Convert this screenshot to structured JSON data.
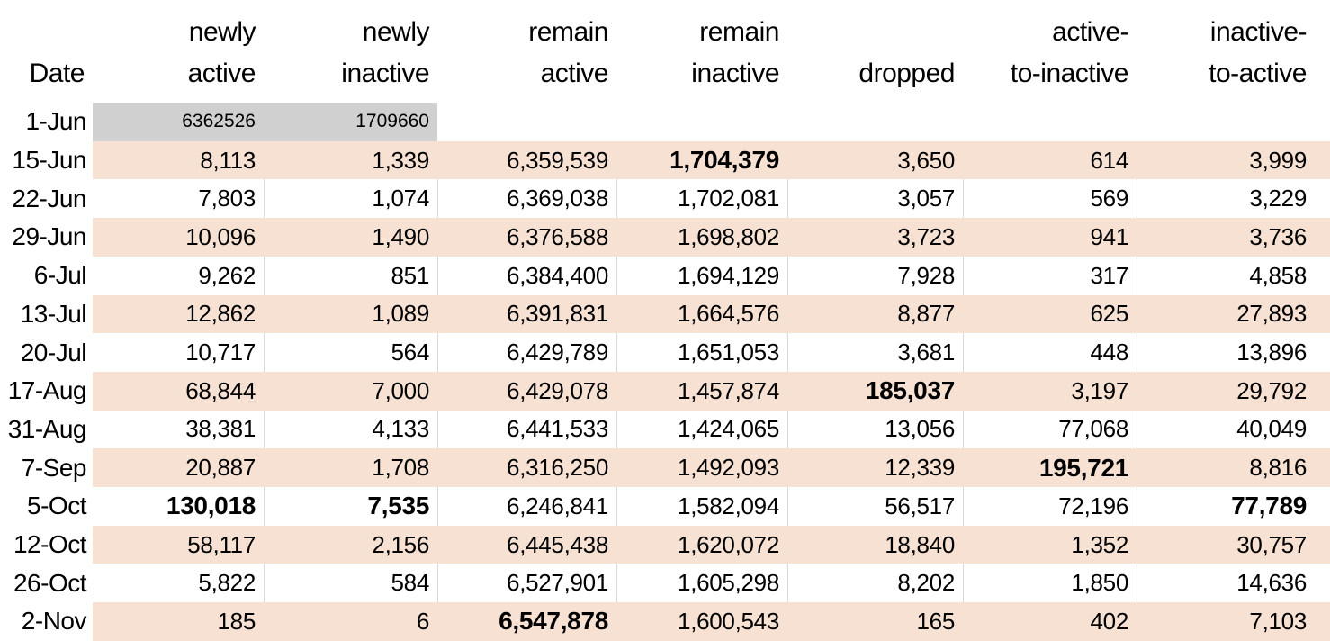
{
  "colors": {
    "background": "#ffffff",
    "text": "#000000",
    "band_peach": "#f6e1d3",
    "fill_gray": "#d0d0d0",
    "grid_line": "#d9d9d9"
  },
  "table": {
    "columns": [
      {
        "id": "date",
        "line1": "",
        "line2": "Date"
      },
      {
        "id": "newly-active",
        "line1": "newly",
        "line2": "active"
      },
      {
        "id": "newly-inactive",
        "line1": "newly",
        "line2": "inactive"
      },
      {
        "id": "remain-active",
        "line1": "remain",
        "line2": "active"
      },
      {
        "id": "remain-inactive",
        "line1": "remain",
        "line2": "inactive"
      },
      {
        "id": "dropped",
        "line1": "",
        "line2": "dropped"
      },
      {
        "id": "active-to-inactive",
        "line1": "active-",
        "line2": "to-inactive"
      },
      {
        "id": "inactive-to-active",
        "line1": "inactive-",
        "line2": "to-active"
      }
    ],
    "rows": [
      {
        "date": "1-Jun",
        "band": "white",
        "values": [
          "6362526",
          "1709660",
          "",
          "",
          "",
          "",
          ""
        ],
        "gray": [
          0,
          1
        ],
        "small": [
          0,
          1
        ],
        "bold": []
      },
      {
        "date": "15-Jun",
        "band": "peach",
        "values": [
          "8,113",
          "1,339",
          "6,359,539",
          "1,704,379",
          "3,650",
          "614",
          "3,999"
        ],
        "bold": [
          3
        ]
      },
      {
        "date": "22-Jun",
        "band": "white",
        "values": [
          "7,803",
          "1,074",
          "6,369,038",
          "1,702,081",
          "3,057",
          "569",
          "3,229"
        ],
        "bold": []
      },
      {
        "date": "29-Jun",
        "band": "peach",
        "values": [
          "10,096",
          "1,490",
          "6,376,588",
          "1,698,802",
          "3,723",
          "941",
          "3,736"
        ],
        "bold": []
      },
      {
        "date": "6-Jul",
        "band": "white",
        "values": [
          "9,262",
          "851",
          "6,384,400",
          "1,694,129",
          "7,928",
          "317",
          "4,858"
        ],
        "bold": []
      },
      {
        "date": "13-Jul",
        "band": "peach",
        "values": [
          "12,862",
          "1,089",
          "6,391,831",
          "1,664,576",
          "8,877",
          "625",
          "27,893"
        ],
        "bold": []
      },
      {
        "date": "20-Jul",
        "band": "white",
        "values": [
          "10,717",
          "564",
          "6,429,789",
          "1,651,053",
          "3,681",
          "448",
          "13,896"
        ],
        "bold": []
      },
      {
        "date": "17-Aug",
        "band": "peach",
        "values": [
          "68,844",
          "7,000",
          "6,429,078",
          "1,457,874",
          "185,037",
          "3,197",
          "29,792"
        ],
        "bold": [
          4
        ]
      },
      {
        "date": "31-Aug",
        "band": "white",
        "values": [
          "38,381",
          "4,133",
          "6,441,533",
          "1,424,065",
          "13,056",
          "77,068",
          "40,049"
        ],
        "bold": []
      },
      {
        "date": "7-Sep",
        "band": "peach",
        "values": [
          "20,887",
          "1,708",
          "6,316,250",
          "1,492,093",
          "12,339",
          "195,721",
          "8,816"
        ],
        "bold": [
          5
        ]
      },
      {
        "date": "5-Oct",
        "band": "white",
        "values": [
          "130,018",
          "7,535",
          "6,246,841",
          "1,582,094",
          "56,517",
          "72,196",
          "77,789"
        ],
        "bold": [
          0,
          1,
          6
        ]
      },
      {
        "date": "12-Oct",
        "band": "peach",
        "values": [
          "58,117",
          "2,156",
          "6,445,438",
          "1,620,072",
          "18,840",
          "1,352",
          "30,757"
        ],
        "bold": []
      },
      {
        "date": "26-Oct",
        "band": "white",
        "values": [
          "5,822",
          "584",
          "6,527,901",
          "1,605,298",
          "8,202",
          "1,850",
          "14,636"
        ],
        "bold": []
      },
      {
        "date": "2-Nov",
        "band": "peach",
        "values": [
          "185",
          "6",
          "6,547,878",
          "1,600,543",
          "165",
          "402",
          "7,103"
        ],
        "bold": [
          2
        ]
      }
    ]
  }
}
